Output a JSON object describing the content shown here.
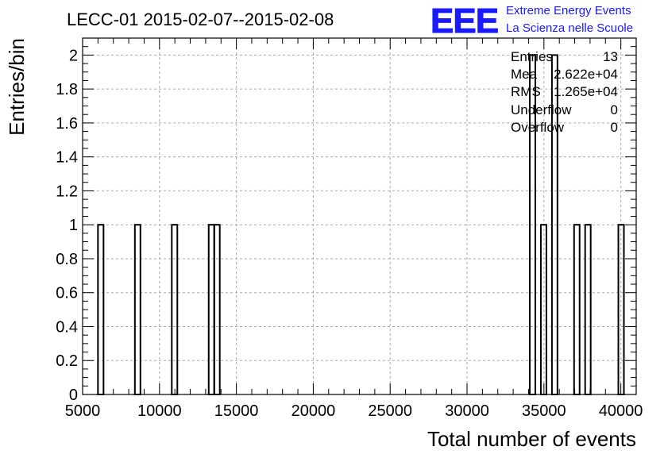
{
  "header": {
    "title": "LECC-01 2015-02-07--2015-02-08",
    "logo_text": "EEE",
    "logo_line1": "Extreme Energy Events",
    "logo_line2": "La Scienza nelle Scuole"
  },
  "stats": [
    {
      "label": "Entries",
      "value": "13"
    },
    {
      "label": "Mea",
      "value": "2.622e+04"
    },
    {
      "label": "RMS",
      "value": "1.265e+04"
    },
    {
      "label": "Underflow",
      "value": "0"
    },
    {
      "label": "Overflow",
      "value": "0"
    }
  ],
  "colors": {
    "logo": "#1a1aff",
    "grid": "#aaaaaa",
    "line": "#000000"
  },
  "chart_data": {
    "type": "bar",
    "title": "LECC-01 2015-02-07--2015-02-08",
    "xlabel": "Total number of events",
    "ylabel": "Entries/bin",
    "xlim": [
      5000,
      41000
    ],
    "ylim": [
      0,
      2.1
    ],
    "grid": true,
    "x_ticks": [
      "5000",
      "10000",
      "15000",
      "20000",
      "25000",
      "30000",
      "35000",
      "40000"
    ],
    "y_ticks": [
      "0",
      "0.2",
      "0.4",
      "0.6",
      "0.8",
      "1",
      "1.2",
      "1.4",
      "1.6",
      "1.8",
      "2"
    ],
    "bins": [
      {
        "x0": 6000,
        "x1": 6360,
        "count": 1
      },
      {
        "x0": 8400,
        "x1": 8760,
        "count": 1
      },
      {
        "x0": 10800,
        "x1": 11160,
        "count": 1
      },
      {
        "x0": 13200,
        "x1": 13560,
        "count": 1
      },
      {
        "x0": 13560,
        "x1": 13920,
        "count": 1
      },
      {
        "x0": 34080,
        "x1": 34440,
        "count": 2
      },
      {
        "x0": 34800,
        "x1": 35160,
        "count": 1
      },
      {
        "x0": 35520,
        "x1": 35880,
        "count": 2
      },
      {
        "x0": 36960,
        "x1": 37320,
        "count": 1
      },
      {
        "x0": 37680,
        "x1": 38040,
        "count": 1
      },
      {
        "x0": 39840,
        "x1": 40200,
        "count": 1
      }
    ]
  }
}
